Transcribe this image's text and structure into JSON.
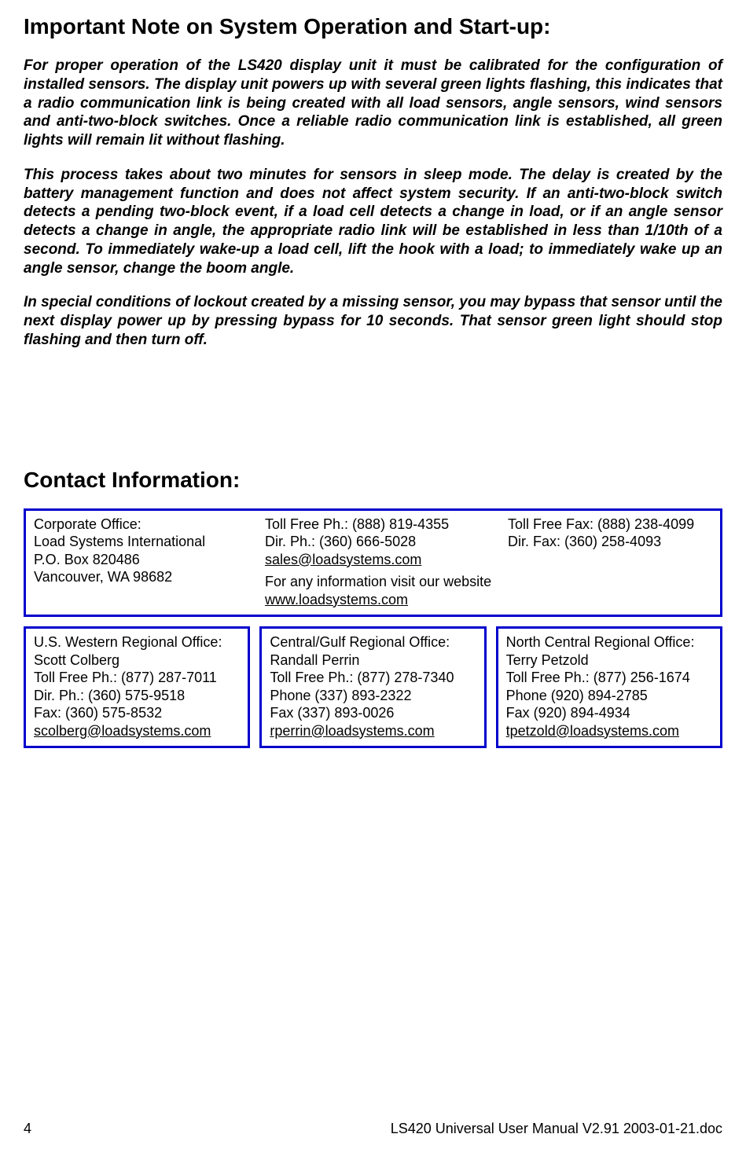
{
  "colors": {
    "box_border": "#0000cc",
    "text": "#000000",
    "background": "#ffffff"
  },
  "typography": {
    "heading_fontsize": 28,
    "body_fontsize": 19,
    "contact_fontsize": 18,
    "footer_fontsize": 18,
    "font_family": "Arial"
  },
  "heading1": "Important Note on System Operation and Start-up:",
  "para1": "For proper operation of the LS420 display unit it must be calibrated for the configuration of installed sensors. The display unit powers up with several green lights flashing, this indicates that a radio communication link is being created with all load sensors, angle sensors, wind sensors and anti-two-block switches. Once a reliable radio communication link is established, all green lights will remain lit without flashing.",
  "para2": "This process takes about two minutes for sensors in sleep mode. The delay is created by the battery management function and does not affect system security. If an anti-two-block switch detects a pending two-block event, if a load cell detects a change in load, or if an angle sensor detects a change in angle, the appropriate radio link will be established in less than 1/10th of a second. To immediately wake-up a load cell, lift the hook with a load; to immediately wake up an angle sensor, change the boom angle.",
  "para3": "In special conditions of lockout created by a missing sensor, you may bypass that sensor until the next display power up by pressing bypass for 10 seconds. That sensor green light should stop flashing and then turn off.",
  "heading2": "Contact Information:",
  "corporate": {
    "title": "Corporate Office:",
    "company": "Load Systems International",
    "po_box": "P.O. Box 820486",
    "city": "Vancouver, WA 98682",
    "toll_free_ph": "Toll Free Ph.: (888) 819-4355",
    "dir_ph": "Dir. Ph.: (360) 666-5028",
    "email": "sales@loadsystems.com",
    "toll_free_fax": "Toll Free Fax: (888) 238-4099",
    "dir_fax": "Dir. Fax: (360) 258-4093",
    "website_prefix": "For any information visit our website ",
    "website": "www.loadsystems.com"
  },
  "regions": [
    {
      "title": "U.S. Western Regional Office:",
      "name": "Scott Colberg",
      "toll_free": "Toll Free Ph.: (877) 287-7011",
      "phone": "Dir. Ph.: (360) 575-9518",
      "fax": "Fax: (360) 575-8532",
      "email": "scolberg@loadsystems.com"
    },
    {
      "title": "Central/Gulf Regional Office:",
      "name": "Randall Perrin",
      "toll_free": "Toll Free Ph.: (877) 278-7340",
      "phone": "Phone (337) 893-2322",
      "fax": "Fax (337) 893-0026",
      "email": "rperrin@loadsystems.com"
    },
    {
      "title": "North Central Regional Office:",
      "name": "Terry Petzold",
      "toll_free": "Toll Free Ph.: (877) 256-1674",
      "phone": "Phone (920) 894-2785",
      "fax": "Fax (920) 894-4934",
      "email": "tpetzold@loadsystems.com"
    }
  ],
  "footer": {
    "page_number": "4",
    "doc_title": "LS420 Universal User Manual V2.91 2003-01-21.doc"
  }
}
